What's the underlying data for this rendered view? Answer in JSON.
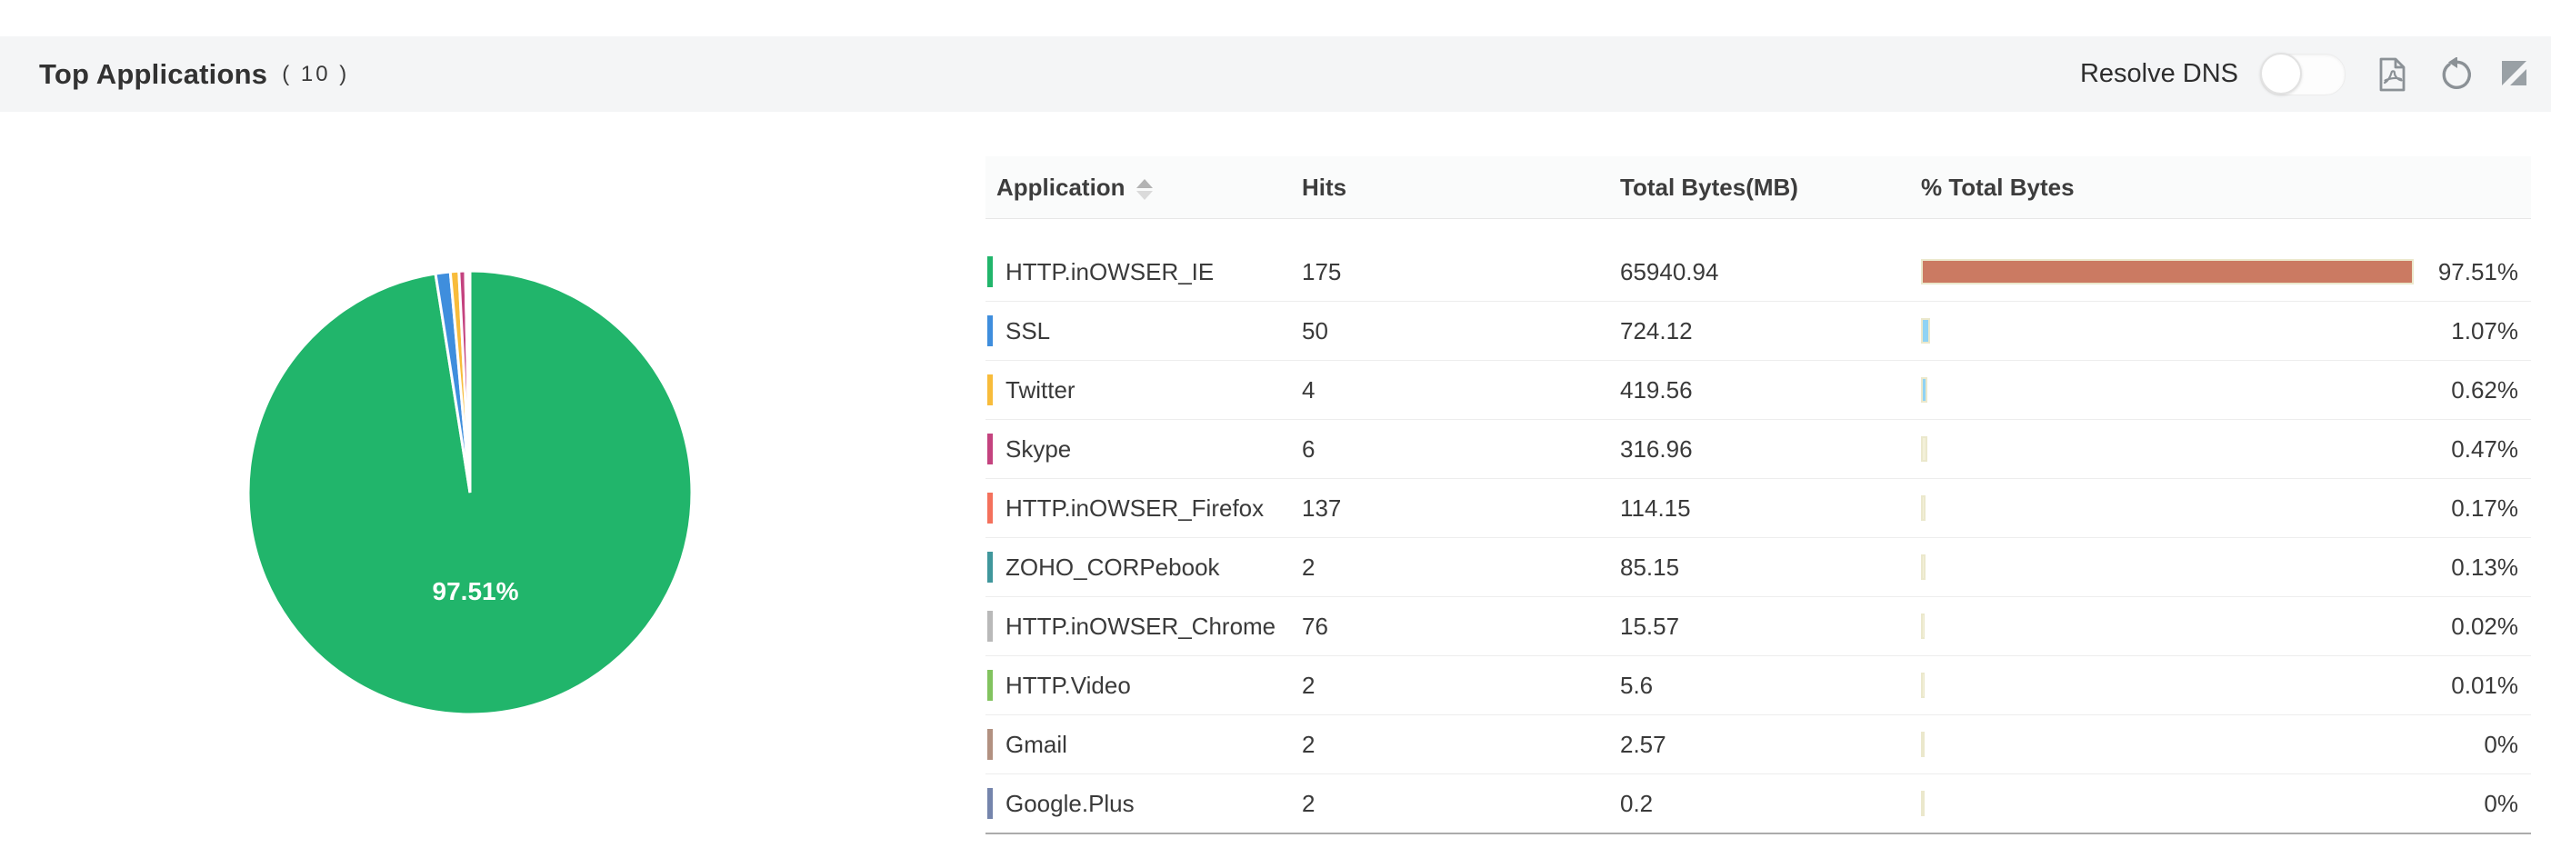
{
  "header": {
    "title": "Top Applications",
    "count": "( 10 )",
    "resolve_dns_label": "Resolve DNS",
    "resolve_dns_state": "off",
    "icons": [
      "pdf-export",
      "refresh",
      "expand"
    ],
    "icon_color": "#8b9196",
    "band_color": "#f4f5f6"
  },
  "table": {
    "columns": [
      "Application",
      "Hits",
      "Total Bytes(MB)",
      "% Total Bytes"
    ],
    "sort_column": "Application",
    "rows": [
      {
        "application": "HTTP.inOWSER_IE",
        "hits": "175",
        "total_bytes_mb": "65940.94",
        "pct_total_bytes": "97.51%",
        "pct_value": 97.51,
        "indicator_color": "#21b56b",
        "bar_color": "#cb7a62"
      },
      {
        "application": "SSL",
        "hits": "50",
        "total_bytes_mb": "724.12",
        "pct_total_bytes": "1.07%",
        "pct_value": 1.07,
        "indicator_color": "#3f8edd",
        "bar_color": "#90d3f4"
      },
      {
        "application": "Twitter",
        "hits": "4",
        "total_bytes_mb": "419.56",
        "pct_total_bytes": "0.62%",
        "pct_value": 0.62,
        "indicator_color": "#f8bc3b",
        "bar_color": "#90d3f4"
      },
      {
        "application": "Skype",
        "hits": "6",
        "total_bytes_mb": "316.96",
        "pct_total_bytes": "0.47%",
        "pct_value": 0.47,
        "indicator_color": "#c4437f",
        "bar_color": "#f3f0d8"
      },
      {
        "application": "HTTP.inOWSER_Firefox",
        "hits": "137",
        "total_bytes_mb": "114.15",
        "pct_total_bytes": "0.17%",
        "pct_value": 0.17,
        "indicator_color": "#f4715c",
        "bar_color": "#f3f0d8"
      },
      {
        "application": "ZOHO_CORPebook",
        "hits": "2",
        "total_bytes_mb": "85.15",
        "pct_total_bytes": "0.13%",
        "pct_value": 0.13,
        "indicator_color": "#40979c",
        "bar_color": "#f3f0d8"
      },
      {
        "application": "HTTP.inOWSER_Chrome",
        "hits": "76",
        "total_bytes_mb": "15.57",
        "pct_total_bytes": "0.02%",
        "pct_value": 0.02,
        "indicator_color": "#b9b9b9",
        "bar_color": "#f3f0d8"
      },
      {
        "application": "HTTP.Video",
        "hits": "2",
        "total_bytes_mb": "5.6",
        "pct_total_bytes": "0.01%",
        "pct_value": 0.01,
        "indicator_color": "#82c35f",
        "bar_color": "#f3f0d8"
      },
      {
        "application": "Gmail",
        "hits": "2",
        "total_bytes_mb": "2.57",
        "pct_total_bytes": "0%",
        "pct_value": 0,
        "indicator_color": "#b29181",
        "bar_color": "#f3f0d8"
      },
      {
        "application": "Google.Plus",
        "hits": "2",
        "total_bytes_mb": "0.2",
        "pct_total_bytes": "0%",
        "pct_value": 0,
        "indicator_color": "#7585ac",
        "bar_color": "#f3f0d8"
      }
    ]
  },
  "chart_data": {
    "type": "pie",
    "title": "Top Applications ( 10 )",
    "center_label": "97.51%",
    "legend_position": "none",
    "start_angle_deg": 0,
    "slice_border_color": "#ffffff",
    "slices": [
      {
        "label": "HTTP.inOWSER_IE",
        "value": 97.51,
        "color": "#21b56b"
      },
      {
        "label": "SSL",
        "value": 1.07,
        "color": "#3f8edd"
      },
      {
        "label": "Twitter",
        "value": 0.62,
        "color": "#f8bc3b"
      },
      {
        "label": "Skype",
        "value": 0.47,
        "color": "#c4437f"
      },
      {
        "label": "HTTP.inOWSER_Firefox",
        "value": 0.17,
        "color": "#f4715c"
      },
      {
        "label": "ZOHO_CORPebook",
        "value": 0.13,
        "color": "#40979c"
      },
      {
        "label": "HTTP.inOWSER_Chrome",
        "value": 0.02,
        "color": "#b9b9b9"
      },
      {
        "label": "HTTP.Video",
        "value": 0.01,
        "color": "#82c35f"
      },
      {
        "label": "Gmail",
        "value": 0,
        "color": "#b29181"
      },
      {
        "label": "Google.Plus",
        "value": 0,
        "color": "#7585ac"
      }
    ]
  }
}
